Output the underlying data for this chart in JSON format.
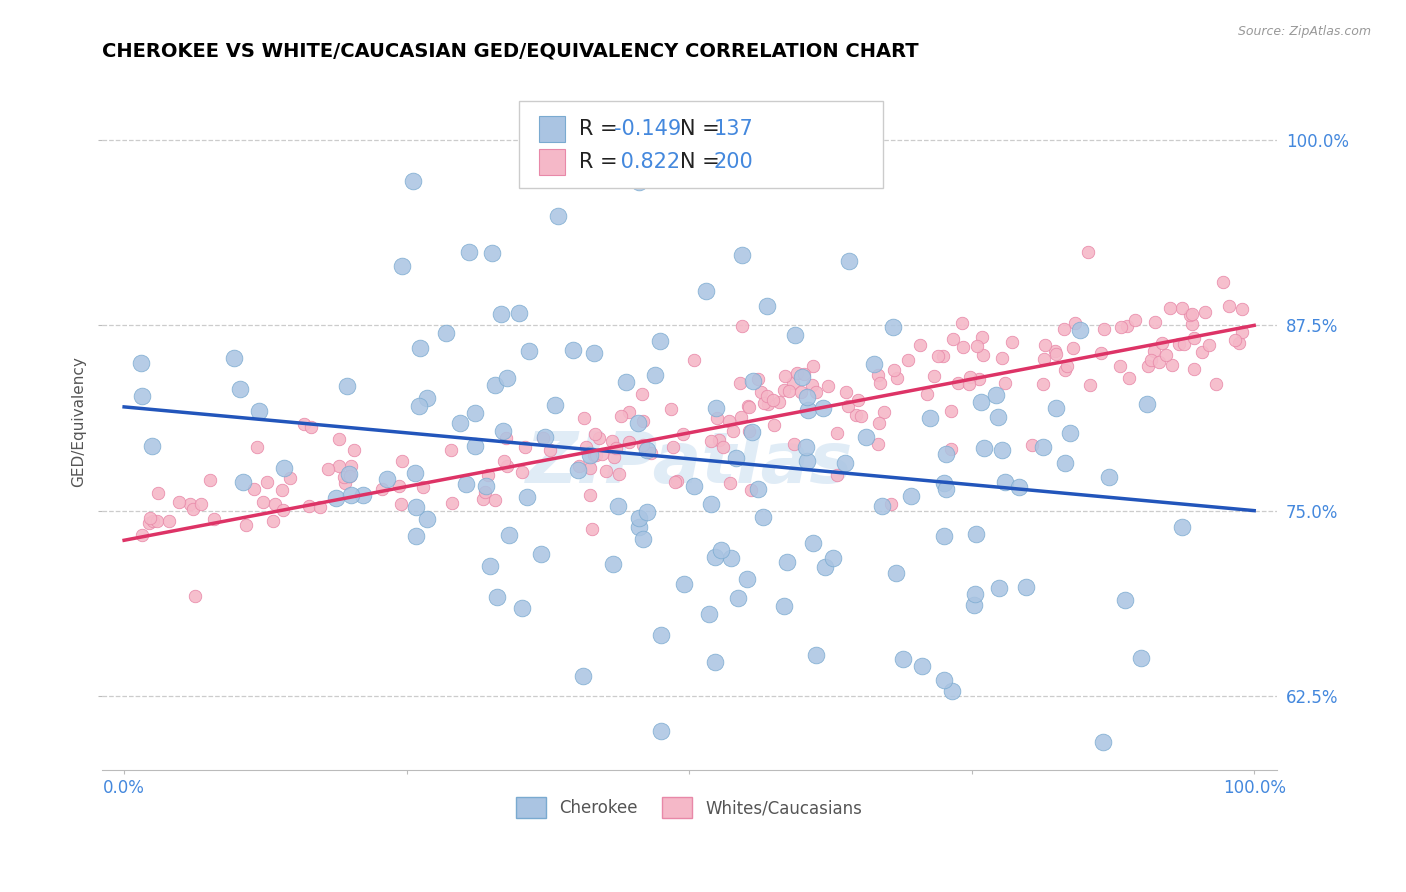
{
  "title": "CHEROKEE VS WHITE/CAUCASIAN GED/EQUIVALENCY CORRELATION CHART",
  "source": "Source: ZipAtlas.com",
  "ylabel": "GED/Equivalency",
  "xlim": [
    -0.02,
    1.02
  ],
  "ylim": [
    0.575,
    1.045
  ],
  "yticks": [
    0.625,
    0.75,
    0.875,
    1.0
  ],
  "ytick_labels": [
    "62.5%",
    "75.0%",
    "87.5%",
    "100.0%"
  ],
  "cherokee_color": "#aac4e2",
  "cherokee_edge": "#7aaad0",
  "white_color": "#f5b8c8",
  "white_edge": "#e888a8",
  "line_cherokee_color": "#2255bb",
  "line_white_color": "#dd3366",
  "cherokee_R": -0.149,
  "cherokee_N": 137,
  "white_R": 0.822,
  "white_N": 200,
  "background_color": "#ffffff",
  "grid_color": "#cccccc",
  "title_fontsize": 14,
  "axis_label_fontsize": 11,
  "tick_fontsize": 12,
  "legend_fontsize": 15,
  "cherokee_marker_size": 12,
  "white_marker_size": 9,
  "seed_cherokee": 42,
  "seed_white": 77,
  "blue_text": "#4488dd",
  "pink_text": "#dd6688",
  "cherokee_line_start_y": 0.82,
  "cherokee_line_end_y": 0.75,
  "white_line_start_y": 0.73,
  "white_line_end_y": 0.875
}
